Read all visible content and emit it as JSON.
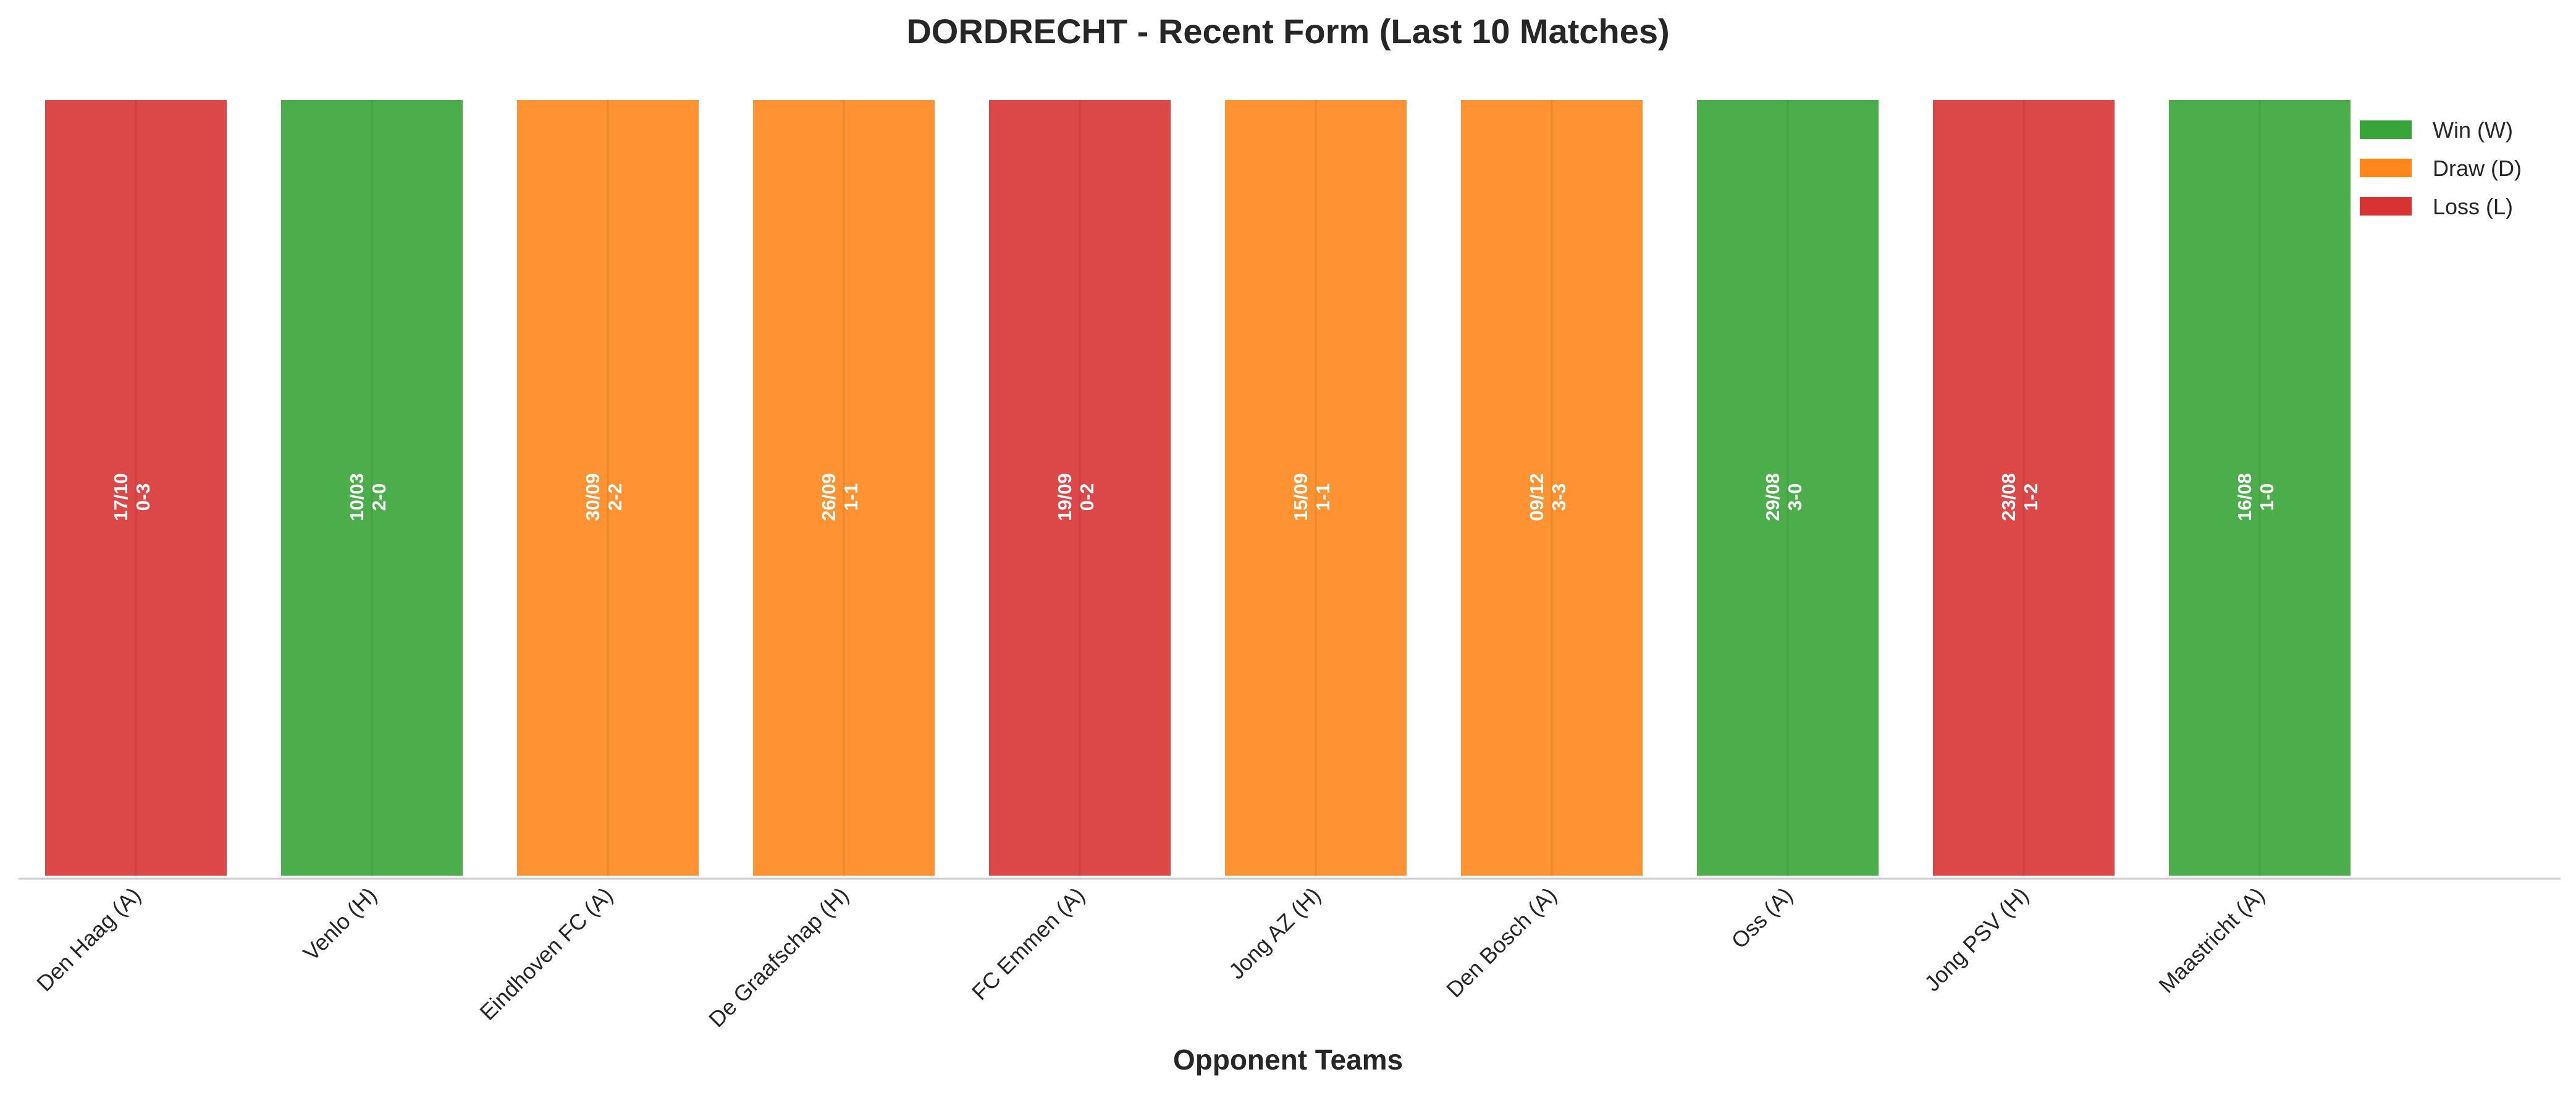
{
  "chart_data": {
    "type": "bar",
    "title": "DORDRECHT - Recent Form (Last 10 Matches)",
    "xlabel": "Opponent Teams",
    "ylabel": "",
    "ylim": [
      0,
      1
    ],
    "grid": false,
    "legend_placement": "top-right",
    "categories": [
      "Den Haag (A)",
      "Venlo (H)",
      "Eindhoven FC (A)",
      "De Graafschap (H)",
      "FC Emmen (A)",
      "Jong AZ (H)",
      "Den Bosch (A)",
      "Oss (A)",
      "Jong PSV (H)",
      "Maastricht (A)"
    ],
    "values": [
      1,
      1,
      1,
      1,
      1,
      1,
      1,
      1,
      1,
      1
    ],
    "results": [
      "L",
      "W",
      "D",
      "D",
      "L",
      "D",
      "D",
      "W",
      "L",
      "W"
    ],
    "dates": [
      "17/10",
      "10/03",
      "30/09",
      "26/09",
      "19/09",
      "15/09",
      "09/12",
      "29/08",
      "23/08",
      "16/08"
    ],
    "scores": [
      "0-3",
      "2-0",
      "2-2",
      "1-1",
      "0-2",
      "1-1",
      "3-3",
      "3-0",
      "1-2",
      "1-0"
    ],
    "legend": [
      {
        "key": "W",
        "label": "Win (W)",
        "color": "#2ca02c"
      },
      {
        "key": "D",
        "label": "Draw (D)",
        "color": "#ff7f0e"
      },
      {
        "key": "L",
        "label": "Loss (L)",
        "color": "#d62728"
      }
    ]
  }
}
